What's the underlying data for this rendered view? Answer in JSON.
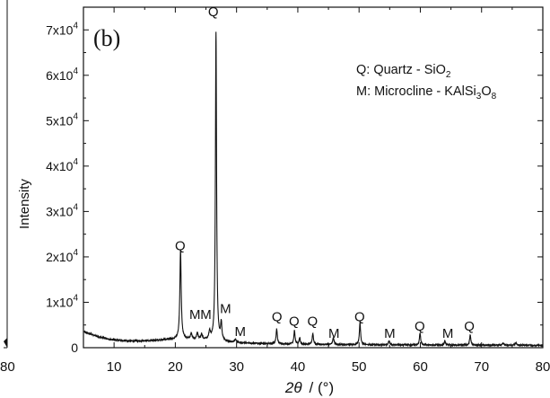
{
  "chart_data": {
    "type": "line",
    "panel_label": "(b)",
    "title": "",
    "xlabel_symbol": "2θ",
    "xlabel_unit": "/ (°)",
    "ylabel": "Intensity",
    "xlim": [
      5,
      80
    ],
    "ylim": [
      0,
      75000
    ],
    "x_ticks": [
      10,
      20,
      30,
      40,
      50,
      60,
      70,
      80
    ],
    "y_ticks": [
      {
        "value": 0,
        "base": "0",
        "exp": ""
      },
      {
        "value": 10000,
        "base": "1x10",
        "exp": "4"
      },
      {
        "value": 20000,
        "base": "2x10",
        "exp": "4"
      },
      {
        "value": 30000,
        "base": "3x10",
        "exp": "4"
      },
      {
        "value": 40000,
        "base": "4x10",
        "exp": "4"
      },
      {
        "value": 50000,
        "base": "5x10",
        "exp": "4"
      },
      {
        "value": 60000,
        "base": "6x10",
        "exp": "4"
      },
      {
        "value": 70000,
        "base": "7x10",
        "exp": "4"
      }
    ],
    "legend": [
      {
        "prefix": "Q: Quartz - SiO",
        "parts": [
          {
            "t": "2",
            "sub": true
          }
        ]
      },
      {
        "prefix": "M: Microcline - KAlSi",
        "parts": [
          {
            "t": "3",
            "sub": true
          },
          {
            "t": "O",
            "sub": false
          },
          {
            "t": "8",
            "sub": true
          }
        ]
      }
    ],
    "legend_position": "top-right",
    "background": {
      "x": [
        5,
        7,
        9,
        11,
        13,
        15,
        17,
        19,
        20.3,
        22,
        24,
        26,
        28,
        30,
        33,
        36,
        40,
        45,
        50,
        55,
        60,
        65,
        70,
        75,
        80
      ],
      "y": [
        3600,
        2600,
        1900,
        1600,
        1500,
        1500,
        1650,
        1800,
        1900,
        1900,
        1700,
        1600,
        1300,
        1100,
        950,
        850,
        750,
        700,
        650,
        620,
        600,
        580,
        560,
        540,
        520
      ]
    },
    "peaks": [
      {
        "x": 20.85,
        "y": 19500,
        "w": 0.13
      },
      {
        "x": 22.6,
        "y": 1200,
        "w": 0.15
      },
      {
        "x": 23.6,
        "y": 1400,
        "w": 0.15
      },
      {
        "x": 24.3,
        "y": 1200,
        "w": 0.15
      },
      {
        "x": 25.6,
        "y": 1700,
        "w": 0.15
      },
      {
        "x": 26.64,
        "y": 68000,
        "w": 0.11
      },
      {
        "x": 27.5,
        "y": 3800,
        "w": 0.12
      },
      {
        "x": 29.8,
        "y": 700,
        "w": 0.15
      },
      {
        "x": 36.55,
        "y": 3300,
        "w": 0.12
      },
      {
        "x": 39.45,
        "y": 3000,
        "w": 0.12
      },
      {
        "x": 40.3,
        "y": 1400,
        "w": 0.12
      },
      {
        "x": 42.45,
        "y": 2400,
        "w": 0.12
      },
      {
        "x": 45.8,
        "y": 1500,
        "w": 0.13
      },
      {
        "x": 50.15,
        "y": 4800,
        "w": 0.12
      },
      {
        "x": 54.9,
        "y": 900,
        "w": 0.13
      },
      {
        "x": 59.95,
        "y": 2600,
        "w": 0.12
      },
      {
        "x": 64.0,
        "y": 800,
        "w": 0.13
      },
      {
        "x": 68.15,
        "y": 2200,
        "w": 0.12
      },
      {
        "x": 73.5,
        "y": 500,
        "w": 0.13
      },
      {
        "x": 75.6,
        "y": 550,
        "w": 0.13
      }
    ],
    "annotations": [
      {
        "text": "Q",
        "x": 20.8,
        "y": 21500
      },
      {
        "text": "Q",
        "x": 26.2,
        "y": 73000
      },
      {
        "text": "M",
        "x": 23.2,
        "y": 6300
      },
      {
        "text": "M",
        "x": 25.0,
        "y": 6300
      },
      {
        "text": "M",
        "x": 28.2,
        "y": 7600
      },
      {
        "text": "M",
        "x": 30.6,
        "y": 2600
      },
      {
        "text": "Q",
        "x": 36.6,
        "y": 5800
      },
      {
        "text": "Q",
        "x": 39.4,
        "y": 4800
      },
      {
        "text": "Q",
        "x": 42.4,
        "y": 4800
      },
      {
        "text": "M",
        "x": 45.9,
        "y": 2200
      },
      {
        "text": "Q",
        "x": 50.1,
        "y": 5800
      },
      {
        "text": "M",
        "x": 55.0,
        "y": 2200
      },
      {
        "text": "Q",
        "x": 59.9,
        "y": 3800
      },
      {
        "text": "M",
        "x": 64.5,
        "y": 2200
      },
      {
        "text": "Q",
        "x": 68.0,
        "y": 3800
      }
    ]
  },
  "left_partial_tick_label": "80"
}
